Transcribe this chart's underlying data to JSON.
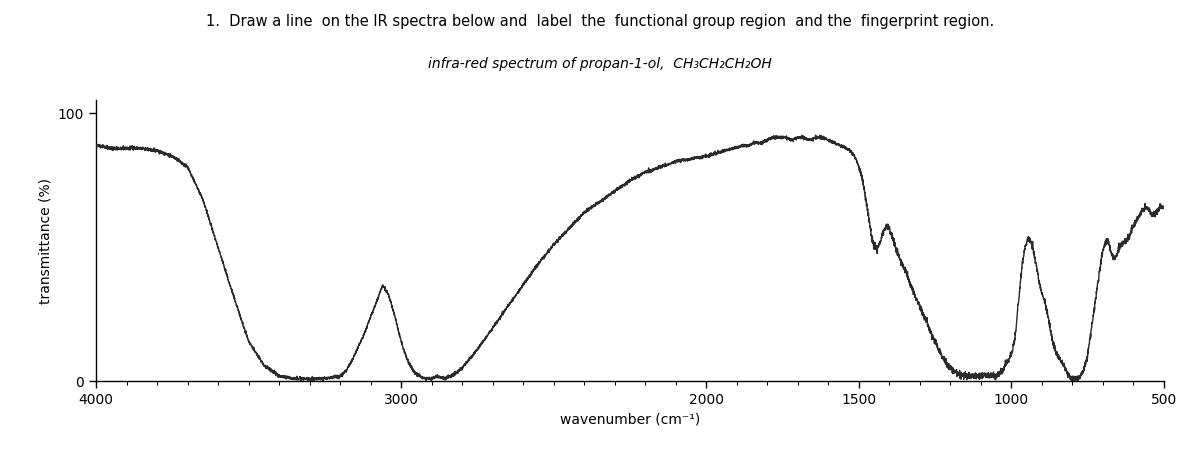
{
  "xlabel": "wavenumber (cm⁻¹)",
  "ylabel": "transmittance (%)",
  "xlim_left": 4000,
  "xlim_right": 500,
  "ylim": [
    0,
    105
  ],
  "ytick_values": [
    0,
    100
  ],
  "ytick_labels": [
    "0",
    "100"
  ],
  "xtick_values": [
    4000,
    3000,
    2000,
    1500,
    1000,
    500
  ],
  "xtick_labels": [
    "4000",
    "3000",
    "2000",
    "1500",
    "1000",
    "500"
  ],
  "background_color": "#ffffff",
  "line_color": "#2a2a2a",
  "figsize": [
    12.0,
    4.54
  ],
  "dpi": 100,
  "spectrum_points": [
    [
      4000,
      88
    ],
    [
      3950,
      87
    ],
    [
      3900,
      87
    ],
    [
      3850,
      87
    ],
    [
      3800,
      86
    ],
    [
      3750,
      84
    ],
    [
      3700,
      80
    ],
    [
      3650,
      68
    ],
    [
      3600,
      50
    ],
    [
      3550,
      32
    ],
    [
      3500,
      15
    ],
    [
      3450,
      6
    ],
    [
      3400,
      2
    ],
    [
      3350,
      1
    ],
    [
      3300,
      1
    ],
    [
      3250,
      1
    ],
    [
      3200,
      2
    ],
    [
      3180,
      4
    ],
    [
      3160,
      8
    ],
    [
      3120,
      18
    ],
    [
      3080,
      30
    ],
    [
      3060,
      36
    ],
    [
      3040,
      32
    ],
    [
      3020,
      24
    ],
    [
      3000,
      15
    ],
    [
      2980,
      8
    ],
    [
      2960,
      4
    ],
    [
      2940,
      2
    ],
    [
      2920,
      1
    ],
    [
      2900,
      1
    ],
    [
      2880,
      2
    ],
    [
      2860,
      1
    ],
    [
      2840,
      2
    ],
    [
      2820,
      3
    ],
    [
      2800,
      5
    ],
    [
      2750,
      12
    ],
    [
      2700,
      20
    ],
    [
      2650,
      28
    ],
    [
      2600,
      36
    ],
    [
      2550,
      44
    ],
    [
      2500,
      51
    ],
    [
      2450,
      57
    ],
    [
      2400,
      63
    ],
    [
      2350,
      67
    ],
    [
      2300,
      71
    ],
    [
      2250,
      75
    ],
    [
      2200,
      78
    ],
    [
      2150,
      80
    ],
    [
      2100,
      82
    ],
    [
      2050,
      83
    ],
    [
      2000,
      84
    ],
    [
      1970,
      85
    ],
    [
      1940,
      86
    ],
    [
      1910,
      87
    ],
    [
      1880,
      88
    ],
    [
      1860,
      88
    ],
    [
      1840,
      89
    ],
    [
      1820,
      89
    ],
    [
      1800,
      90
    ],
    [
      1780,
      91
    ],
    [
      1760,
      91
    ],
    [
      1740,
      91
    ],
    [
      1720,
      90
    ],
    [
      1700,
      91
    ],
    [
      1680,
      91
    ],
    [
      1660,
      90
    ],
    [
      1640,
      91
    ],
    [
      1620,
      91
    ],
    [
      1600,
      90
    ],
    [
      1580,
      89
    ],
    [
      1560,
      88
    ],
    [
      1540,
      87
    ],
    [
      1530,
      86
    ],
    [
      1520,
      85
    ],
    [
      1510,
      83
    ],
    [
      1500,
      80
    ],
    [
      1490,
      76
    ],
    [
      1480,
      70
    ],
    [
      1470,
      63
    ],
    [
      1460,
      55
    ],
    [
      1450,
      50
    ],
    [
      1440,
      50
    ],
    [
      1430,
      52
    ],
    [
      1420,
      56
    ],
    [
      1410,
      58
    ],
    [
      1400,
      57
    ],
    [
      1390,
      54
    ],
    [
      1380,
      50
    ],
    [
      1370,
      47
    ],
    [
      1360,
      44
    ],
    [
      1350,
      42
    ],
    [
      1340,
      39
    ],
    [
      1330,
      36
    ],
    [
      1320,
      33
    ],
    [
      1310,
      30
    ],
    [
      1300,
      28
    ],
    [
      1290,
      25
    ],
    [
      1280,
      23
    ],
    [
      1270,
      20
    ],
    [
      1260,
      17
    ],
    [
      1250,
      15
    ],
    [
      1240,
      12
    ],
    [
      1230,
      10
    ],
    [
      1220,
      8
    ],
    [
      1210,
      6
    ],
    [
      1200,
      5
    ],
    [
      1190,
      4
    ],
    [
      1180,
      3
    ],
    [
      1170,
      3
    ],
    [
      1160,
      2
    ],
    [
      1150,
      2
    ],
    [
      1140,
      2
    ],
    [
      1130,
      2
    ],
    [
      1120,
      2
    ],
    [
      1110,
      2
    ],
    [
      1100,
      2
    ],
    [
      1090,
      2
    ],
    [
      1080,
      2
    ],
    [
      1070,
      2
    ],
    [
      1060,
      2
    ],
    [
      1050,
      2
    ],
    [
      1040,
      3
    ],
    [
      1030,
      4
    ],
    [
      1020,
      6
    ],
    [
      1010,
      8
    ],
    [
      1000,
      10
    ],
    [
      990,
      15
    ],
    [
      985,
      20
    ],
    [
      980,
      26
    ],
    [
      975,
      32
    ],
    [
      970,
      38
    ],
    [
      965,
      43
    ],
    [
      960,
      47
    ],
    [
      955,
      50
    ],
    [
      950,
      52
    ],
    [
      945,
      53
    ],
    [
      940,
      53
    ],
    [
      935,
      52
    ],
    [
      930,
      50
    ],
    [
      925,
      47
    ],
    [
      920,
      44
    ],
    [
      915,
      41
    ],
    [
      910,
      38
    ],
    [
      905,
      35
    ],
    [
      900,
      33
    ],
    [
      895,
      31
    ],
    [
      890,
      30
    ],
    [
      885,
      27
    ],
    [
      880,
      24
    ],
    [
      875,
      21
    ],
    [
      870,
      18
    ],
    [
      865,
      15
    ],
    [
      860,
      13
    ],
    [
      855,
      11
    ],
    [
      850,
      10
    ],
    [
      845,
      9
    ],
    [
      840,
      8
    ],
    [
      835,
      7
    ],
    [
      830,
      6
    ],
    [
      825,
      5
    ],
    [
      820,
      4
    ],
    [
      815,
      3
    ],
    [
      810,
      2
    ],
    [
      805,
      1
    ],
    [
      800,
      1
    ],
    [
      795,
      1
    ],
    [
      790,
      1
    ],
    [
      785,
      1
    ],
    [
      780,
      1
    ],
    [
      775,
      2
    ],
    [
      770,
      3
    ],
    [
      765,
      4
    ],
    [
      760,
      6
    ],
    [
      755,
      8
    ],
    [
      750,
      10
    ],
    [
      745,
      14
    ],
    [
      740,
      18
    ],
    [
      735,
      22
    ],
    [
      730,
      26
    ],
    [
      725,
      30
    ],
    [
      720,
      34
    ],
    [
      715,
      38
    ],
    [
      710,
      42
    ],
    [
      705,
      46
    ],
    [
      700,
      49
    ],
    [
      695,
      51
    ],
    [
      690,
      52
    ],
    [
      685,
      52
    ],
    [
      680,
      51
    ],
    [
      675,
      49
    ],
    [
      670,
      47
    ],
    [
      665,
      46
    ],
    [
      660,
      46
    ],
    [
      655,
      47
    ],
    [
      650,
      49
    ],
    [
      645,
      50
    ],
    [
      640,
      51
    ],
    [
      635,
      52
    ],
    [
      630,
      52
    ],
    [
      625,
      52
    ],
    [
      620,
      53
    ],
    [
      615,
      54
    ],
    [
      610,
      55
    ],
    [
      605,
      57
    ],
    [
      600,
      58
    ],
    [
      595,
      59
    ],
    [
      590,
      60
    ],
    [
      585,
      61
    ],
    [
      580,
      62
    ],
    [
      575,
      63
    ],
    [
      570,
      64
    ],
    [
      565,
      64
    ],
    [
      560,
      65
    ],
    [
      555,
      65
    ],
    [
      550,
      64
    ],
    [
      545,
      63
    ],
    [
      540,
      62
    ],
    [
      535,
      62
    ],
    [
      530,
      62
    ],
    [
      525,
      63
    ],
    [
      520,
      64
    ],
    [
      515,
      65
    ],
    [
      510,
      65
    ],
    [
      505,
      65
    ],
    [
      500,
      65
    ]
  ]
}
